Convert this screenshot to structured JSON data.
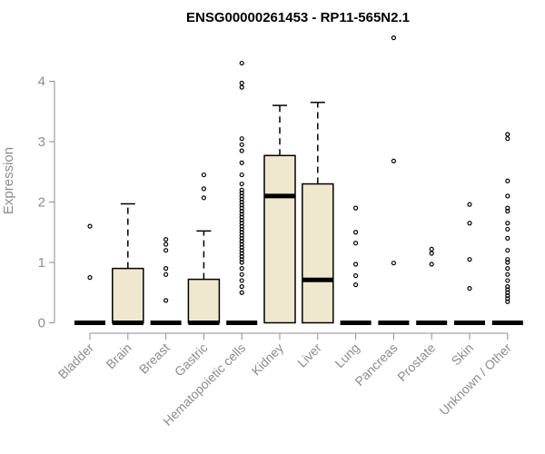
{
  "chart_data": {
    "type": "boxplot",
    "title": "ENSG00000261453 - RP11-565N2.1",
    "xlabel": "",
    "ylabel": "Expression",
    "ylim": [
      0,
      4.75
    ],
    "yticks": [
      0,
      1,
      2,
      3,
      4
    ],
    "grid": false,
    "legend": "none",
    "colors": {
      "box_fill": "#efe8cf",
      "outline": "#000000",
      "axis": "#8c8c8c"
    },
    "categories": [
      "Bladder",
      "Brain",
      "Breast",
      "Gastric",
      "Hematopoietic cells",
      "Kidney",
      "Liver",
      "Lung",
      "Pancreas",
      "Prostate",
      "Skin",
      "Unknown / Other"
    ],
    "boxes": [
      {
        "category": "Bladder",
        "q1": 0,
        "median": 0,
        "q3": 0,
        "whisker_low": 0,
        "whisker_high": 0,
        "outliers": [
          0.75,
          1.6
        ]
      },
      {
        "category": "Brain",
        "q1": 0,
        "median": 0,
        "q3": 0.9,
        "whisker_low": 0,
        "whisker_high": 1.97,
        "outliers": []
      },
      {
        "category": "Breast",
        "q1": 0,
        "median": 0,
        "q3": 0,
        "whisker_low": 0,
        "whisker_high": 0,
        "outliers": [
          0.37,
          0.8,
          0.9,
          1.2,
          1.3,
          1.38
        ]
      },
      {
        "category": "Gastric",
        "q1": 0,
        "median": 0,
        "q3": 0.72,
        "whisker_low": 0,
        "whisker_high": 1.52,
        "outliers": [
          2.07,
          2.22,
          2.45
        ]
      },
      {
        "category": "Hematopoietic cells",
        "q1": 0,
        "median": 0,
        "q3": 0,
        "whisker_low": 0,
        "whisker_high": 0,
        "outliers": [
          0.5,
          0.6,
          0.7,
          0.8,
          0.9,
          1.0,
          1.05,
          1.1,
          1.15,
          1.2,
          1.25,
          1.3,
          1.35,
          1.4,
          1.45,
          1.5,
          1.55,
          1.6,
          1.65,
          1.7,
          1.75,
          1.8,
          1.85,
          1.9,
          1.95,
          2.0,
          2.05,
          2.1,
          2.15,
          2.2,
          2.3,
          2.45,
          2.65,
          2.85,
          2.95,
          3.05,
          3.9,
          3.97,
          4.3
        ]
      },
      {
        "category": "Kidney",
        "q1": 0,
        "median": 2.1,
        "q3": 2.77,
        "whisker_low": 0,
        "whisker_high": 3.6,
        "outliers": []
      },
      {
        "category": "Liver",
        "q1": 0,
        "median": 0.71,
        "q3": 2.3,
        "whisker_low": 0,
        "whisker_high": 3.65,
        "outliers": []
      },
      {
        "category": "Lung",
        "q1": 0,
        "median": 0,
        "q3": 0,
        "whisker_low": 0,
        "whisker_high": 0,
        "outliers": [
          0.63,
          0.78,
          0.97,
          1.32,
          1.5,
          1.9
        ]
      },
      {
        "category": "Pancreas",
        "q1": 0,
        "median": 0,
        "q3": 0,
        "whisker_low": 0,
        "whisker_high": 0,
        "outliers": [
          0.99,
          2.68,
          4.72
        ]
      },
      {
        "category": "Prostate",
        "q1": 0,
        "median": 0,
        "q3": 0,
        "whisker_low": 0,
        "whisker_high": 0,
        "outliers": [
          0.97,
          1.15,
          1.22
        ]
      },
      {
        "category": "Skin",
        "q1": 0,
        "median": 0,
        "q3": 0,
        "whisker_low": 0,
        "whisker_high": 0,
        "outliers": [
          0.57,
          1.05,
          1.65,
          1.96
        ]
      },
      {
        "category": "Unknown / Other",
        "q1": 0,
        "median": 0,
        "q3": 0,
        "whisker_low": 0,
        "whisker_high": 0,
        "outliers": [
          0.35,
          0.4,
          0.45,
          0.5,
          0.55,
          0.6,
          0.7,
          0.8,
          0.9,
          1.0,
          1.05,
          1.2,
          1.4,
          1.55,
          1.65,
          1.85,
          1.9,
          2.1,
          2.35,
          3.05,
          3.12
        ]
      }
    ]
  }
}
